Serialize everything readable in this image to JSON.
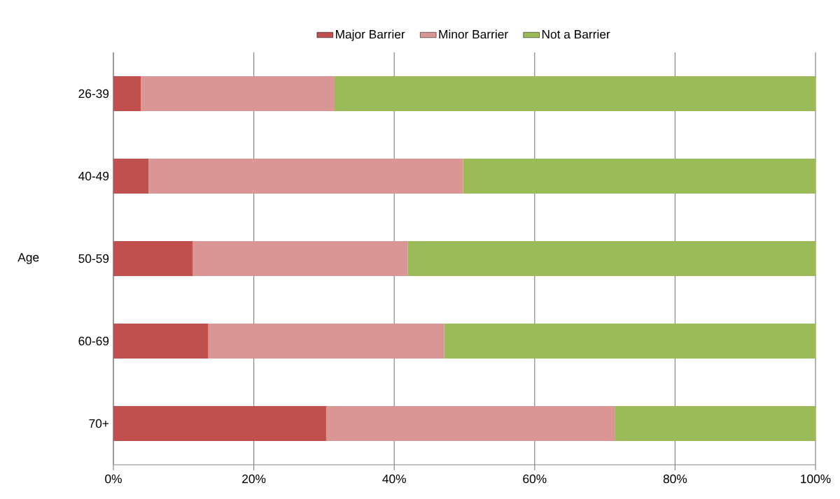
{
  "chart_data": {
    "type": "bar",
    "orientation": "horizontal",
    "stacked": true,
    "ylabel": "Age",
    "categories": [
      "26-39",
      "40-49",
      "50-59",
      "60-69",
      "70+"
    ],
    "series": [
      {
        "name": "Major Barrier",
        "color": "#c0504d",
        "values": [
          3.9,
          5.0,
          11.3,
          13.5,
          30.3
        ]
      },
      {
        "name": "Minor Barrier",
        "color": "#d99694",
        "values": [
          27.6,
          44.8,
          30.6,
          33.6,
          41.1
        ]
      },
      {
        "name": "Not a Barrier",
        "color": "#9bbb59",
        "values": [
          68.5,
          50.2,
          58.1,
          52.9,
          28.6
        ]
      }
    ],
    "xlim": [
      0,
      100
    ],
    "xticks": [
      {
        "value": 0,
        "label": "0%"
      },
      {
        "value": 20,
        "label": "20%"
      },
      {
        "value": 40,
        "label": "40%"
      },
      {
        "value": 60,
        "label": "60%"
      },
      {
        "value": 80,
        "label": "80%"
      },
      {
        "value": 100,
        "label": "100%"
      }
    ],
    "grid": "x",
    "legend": "top"
  }
}
